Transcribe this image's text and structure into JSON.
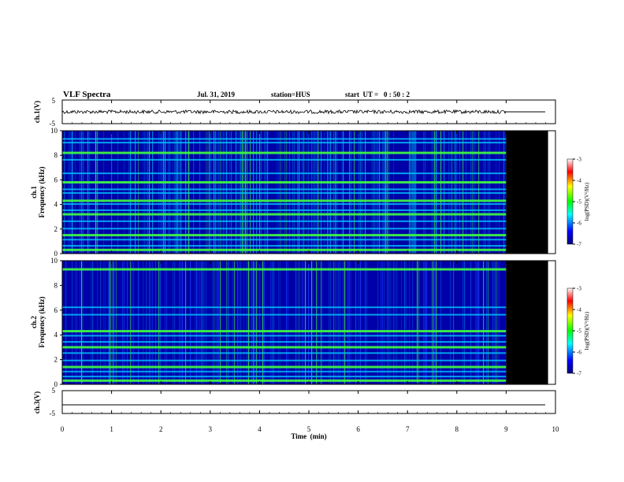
{
  "header": {
    "title": "VLF Spectra",
    "date": "Jul. 31, 2019",
    "station": "station=HUS",
    "start": "start  UT =   0 : 50 : 2"
  },
  "colors": {
    "spectrogram_floor": "#0000a8",
    "spectrogram_noise": "#00c8ff",
    "spectrogram_band": "#40ff40",
    "spectrogram_peak": "#ffff00",
    "no_data": "#000000"
  },
  "chart_data": [
    {
      "type": "line",
      "name": "ch1-waveform",
      "ylabel": "ch.1(V)",
      "ylim": [
        -5,
        5
      ],
      "yticks": [
        "5",
        "-5"
      ],
      "xlim": [
        0,
        10
      ],
      "note_visible": "",
      "baseline": 0,
      "data_until": 9.0
    },
    {
      "type": "heatmap",
      "name": "ch1-spectrogram",
      "ylabel_channel": "ch.1",
      "ylabel": "Frequency (kHz)",
      "ylim": [
        0,
        10
      ],
      "yticks": [
        "0",
        "2",
        "4",
        "6",
        "8",
        "10"
      ],
      "xlim": [
        0,
        10
      ],
      "data_until": 9.0,
      "bands_khz": [
        0.3,
        0.6,
        1.1,
        1.5,
        2.0,
        2.6,
        3.2,
        3.5,
        4.0,
        4.3,
        4.9,
        5.2,
        5.8,
        6.5,
        7.6,
        8.2,
        9.0,
        9.3
      ],
      "colorbar": {
        "label": "log(PSD)(V²/Hz)",
        "ticks": [
          "-3",
          "-4",
          "-5",
          "-6",
          "-7"
        ]
      }
    },
    {
      "type": "heatmap",
      "name": "ch2-spectrogram",
      "ylabel_channel": "ch.2",
      "ylabel": "Frequency (kHz)",
      "ylim": [
        0,
        10
      ],
      "yticks": [
        "0",
        "2",
        "4",
        "6",
        "8",
        "10"
      ],
      "xlim": [
        0,
        10
      ],
      "data_until": 9.0,
      "bands_khz": [
        0.3,
        0.6,
        1.0,
        1.4,
        1.9,
        2.5,
        3.0,
        3.4,
        3.9,
        4.3,
        5.6,
        6.2,
        9.3
      ],
      "colorbar": {
        "label": "log(PSD)(V²/Hz)",
        "ticks": [
          "-3",
          "-4",
          "-5",
          "-6",
          "-7"
        ]
      }
    },
    {
      "type": "line",
      "name": "ch3-waveform",
      "ylabel": "ch.3(V)",
      "ylim": [
        -5,
        5
      ],
      "yticks": [
        "5",
        "-5"
      ],
      "xlim": [
        0,
        10
      ],
      "baseline": -1.5,
      "xlabel": "Time  (min)",
      "xticks": [
        "0",
        "1",
        "2",
        "3",
        "4",
        "5",
        "6",
        "7",
        "8",
        "9",
        "10"
      ]
    }
  ]
}
